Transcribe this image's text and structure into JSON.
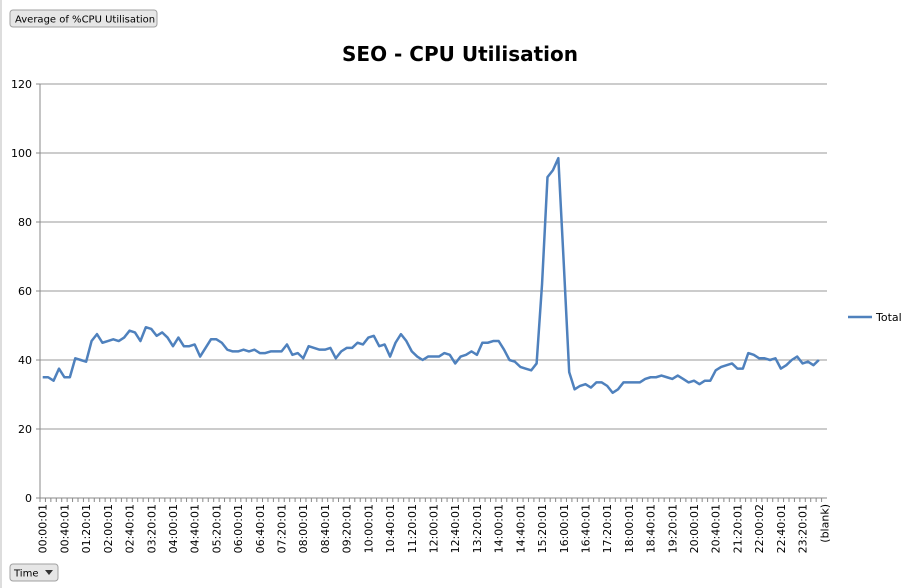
{
  "filter_button": "Average of %CPU Utilisation",
  "axis_button": "Time",
  "chart_data": {
    "type": "line",
    "title": "SEO - CPU Utilisation",
    "categories": [
      "00:00:01",
      null,
      null,
      null,
      "00:40:01",
      null,
      null,
      null,
      "01:20:01",
      null,
      null,
      null,
      "02:00:01",
      null,
      null,
      null,
      "02:40:01",
      null,
      null,
      null,
      "03:20:01",
      null,
      null,
      null,
      "04:00:01",
      null,
      null,
      null,
      "04:40:01",
      null,
      null,
      null,
      "05:20:01",
      null,
      null,
      null,
      "06:00:01",
      null,
      null,
      null,
      "06:40:01",
      null,
      null,
      null,
      "07:20:01",
      null,
      null,
      null,
      "08:00:01",
      null,
      null,
      null,
      "08:40:01",
      null,
      null,
      null,
      "09:20:01",
      null,
      null,
      null,
      "10:00:01",
      null,
      null,
      null,
      "10:40:01",
      null,
      null,
      null,
      "11:20:01",
      null,
      null,
      null,
      "12:00:01",
      null,
      null,
      null,
      "12:40:01",
      null,
      null,
      null,
      "13:20:01",
      null,
      null,
      null,
      "14:00:01",
      null,
      null,
      null,
      "14:40:01",
      null,
      null,
      null,
      "15:20:01",
      null,
      null,
      null,
      "16:00:01",
      null,
      null,
      null,
      "16:40:01",
      null,
      null,
      null,
      "17:20:01",
      null,
      null,
      null,
      "18:00:01",
      null,
      null,
      null,
      "18:40:01",
      null,
      null,
      null,
      "19:20:01",
      null,
      null,
      null,
      "20:00:01",
      null,
      null,
      null,
      "20:40:01",
      null,
      null,
      null,
      "21:20:01",
      null,
      null,
      null,
      "22:00:02",
      null,
      null,
      null,
      "22:40:01",
      null,
      null,
      null,
      "23:20:01",
      null,
      null,
      null,
      "(blank)"
    ],
    "series": [
      {
        "name": "Total",
        "color": "#4f81bd",
        "values": [
          35,
          35,
          34,
          37.5,
          35,
          35,
          40.5,
          40,
          39.5,
          45.5,
          47.5,
          45,
          45.5,
          46,
          45.5,
          46.5,
          48.5,
          48,
          45.5,
          49.5,
          49,
          47,
          48,
          46.5,
          44,
          46.5,
          44,
          44,
          44.5,
          41,
          43.5,
          46,
          46,
          45,
          43,
          42.5,
          42.5,
          43,
          42.5,
          43,
          42,
          42,
          42.5,
          42.5,
          42.5,
          44.5,
          41.5,
          42,
          40.5,
          44,
          43.5,
          43,
          43,
          43.5,
          40.5,
          42.5,
          43.5,
          43.5,
          45,
          44.5,
          46.5,
          47,
          44,
          44.5,
          41,
          45,
          47.5,
          45.5,
          42.5,
          41,
          40,
          41,
          41,
          41,
          42,
          41.5,
          39,
          41,
          41.5,
          42.5,
          41.5,
          45,
          45,
          45.5,
          45.5,
          43,
          40,
          39.5,
          38,
          37.5,
          37,
          39,
          62,
          93,
          95,
          98.5,
          68,
          36.5,
          31.5,
          32.5,
          33,
          32,
          33.5,
          33.5,
          32.5,
          30.5,
          31.5,
          33.5,
          33.5,
          33.5,
          33.5,
          34.5,
          35,
          35,
          35.5,
          35,
          34.5,
          35.5,
          34.5,
          33.5,
          34,
          33,
          34,
          34,
          37,
          38,
          38.5,
          39,
          37.5,
          37.5,
          42,
          41.5,
          40.5,
          40.5,
          40,
          40.5,
          37.5,
          38.5,
          40,
          41,
          39,
          39.5,
          38.5,
          40,
          null
        ]
      }
    ],
    "ylim": [
      0,
      120
    ],
    "yticks": [
      0,
      20,
      40,
      60,
      80,
      100,
      120
    ],
    "grid": true,
    "legend": "right"
  }
}
